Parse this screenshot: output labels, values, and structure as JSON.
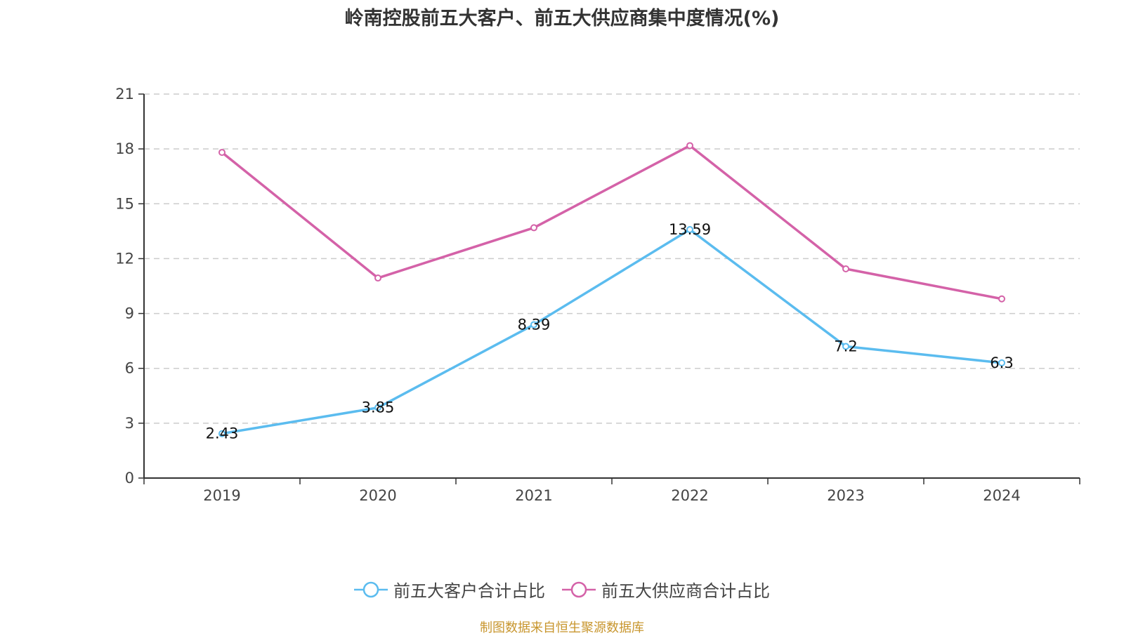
{
  "chart_data": {
    "type": "line",
    "title": "岭南控股前五大客户、前五大供应商集中度情况(%)",
    "xlabel": "",
    "ylabel": "",
    "categories": [
      "2019",
      "2020",
      "2021",
      "2022",
      "2023",
      "2024"
    ],
    "ylim": [
      0,
      21
    ],
    "yticks": [
      0,
      3,
      6,
      9,
      12,
      15,
      18,
      21
    ],
    "grid": true,
    "legend_position": "bottom-center",
    "series": [
      {
        "name": "前五大客户合计占比",
        "color": "#5bbcef",
        "values": [
          2.43,
          3.85,
          8.39,
          13.59,
          7.2,
          6.3
        ],
        "labels": [
          "2.43",
          "3.85",
          "8.39",
          "13.59",
          "7.2",
          "6.3"
        ],
        "show_labels": true
      },
      {
        "name": "前五大供应商合计占比",
        "color": "#d462a8",
        "values": [
          17.81,
          10.94,
          13.69,
          18.18,
          11.44,
          9.8
        ],
        "show_labels": false
      }
    ]
  },
  "footer": "制图数据来自恒生聚源数据库"
}
